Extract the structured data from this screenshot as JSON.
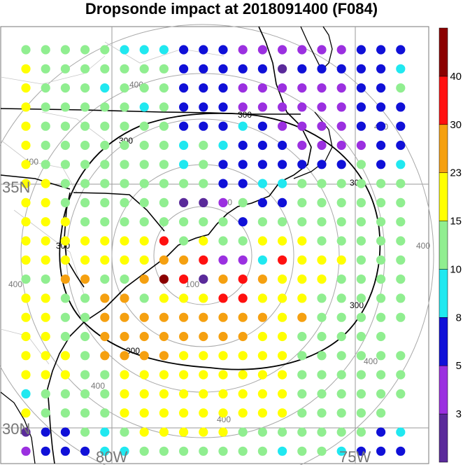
{
  "title": "Dropsonde impact at 2018091400 (F084)",
  "labels": {
    "lat_35": "35N",
    "lat_30": "30N",
    "lon_80": "80W",
    "lon_75": "75W"
  },
  "contour_labels": {
    "r100": "100",
    "r300": "300",
    "r400": "400",
    "r200": "200"
  },
  "colorbar": {
    "ticks": [
      "3",
      "5",
      "8",
      "10",
      "15",
      "23",
      "30",
      "40"
    ],
    "colors": [
      "#5a2a9a",
      "#9b30e0",
      "#1010d8",
      "#20e8f0",
      "#90ee90",
      "#ffff00",
      "#f5a010",
      "#ff1010",
      "#8b0000"
    ]
  },
  "grid": {
    "rows": [
      "gggggcccbbbppppppbbb",
      "ygggggggbbbbbbbbbbbc",
      "ygggcgggbbbppppppbbg",
      "ygggggcgbbbppppppbbb",
      "ygggggggbbbcbppppbbb",
      "ygggggggcgcbbbppppbb",
      "ygggggggcgbbbbbbbgbc",
      "yyggggggggbbccgggggg",
      "yyggggggbppgbbgggggg",
      "yyyggggggggbgggggggg",
      "yyyyyyyrgyggyyyggggg",
      "yyyyyyyoorppcryyyggg",
      "ggooggorrdoroyyygggg",
      "yyggoogyyyrryyyggggg",
      "yyggoooooooooyoggggg",
      "yyggooooooooyyggggg",
      "yyygooooyyyyyygggggg",
      "yyyggyyyyyyyyygggggg",
      "cggggyyyyyyyyygggggg",
      "yggggyyyyyyyyyggggg",
      "dbbgcgyyyyygggggggbc",
      "pbbbccgggggggcggcbbb"
    ],
    "legend": {
      "d": "#5a2a9a",
      "p": "#9b30e0",
      "b": "#1010d8",
      "c": "#20e8f0",
      "g": "#90ee90",
      "y": "#ffff00",
      "o": "#f5a010",
      "r": "#ff1010",
      "k": "#8b0000"
    },
    "overrides": [
      {
        "row": 12,
        "col": 7,
        "value": "k"
      },
      {
        "row": 1,
        "col": 13,
        "value": "d"
      },
      {
        "row": 8,
        "col": 8,
        "value": "d"
      },
      {
        "row": 8,
        "col": 9,
        "value": "d"
      }
    ]
  }
}
